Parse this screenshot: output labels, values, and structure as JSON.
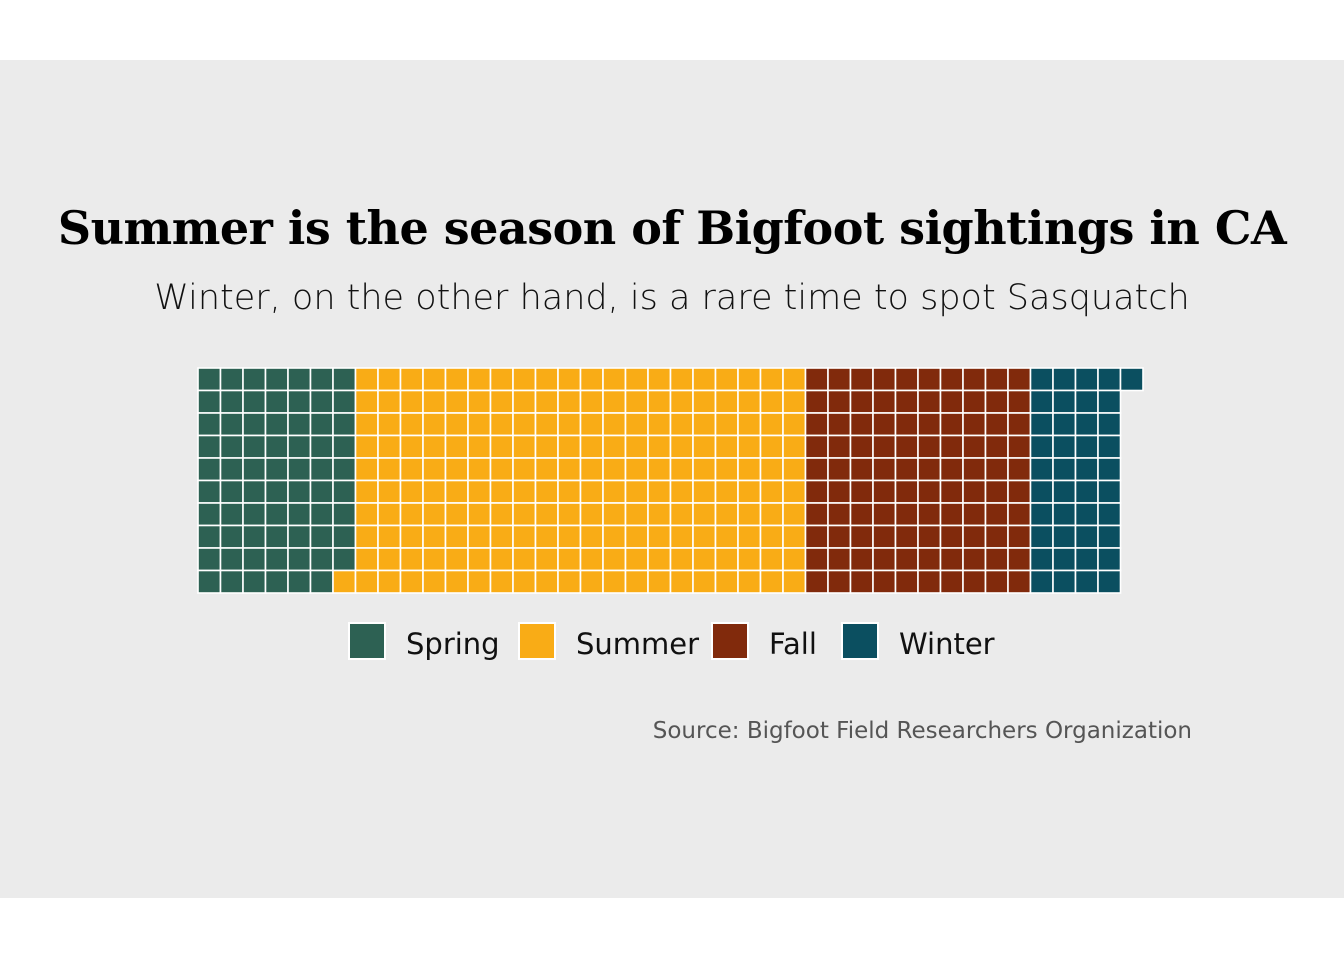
{
  "chart_data": {
    "type": "waffle",
    "title": "Summer is the season of Bigfoot sightings in CA",
    "subtitle": "Winter, on the other hand, is a rare time to spot Sasquatch",
    "caption": "Source: Bigfoot Field Researchers Organization",
    "rows": 10,
    "fill_order": "column-major, top to bottom",
    "categories": [
      "Spring",
      "Summer",
      "Fall",
      "Winter"
    ],
    "values": [
      69,
      201,
      100,
      41
    ],
    "colors": [
      "#2d6153",
      "#f9ac16",
      "#812a0c",
      "#0b4f60"
    ],
    "legend_position": "bottom",
    "grid": false
  }
}
